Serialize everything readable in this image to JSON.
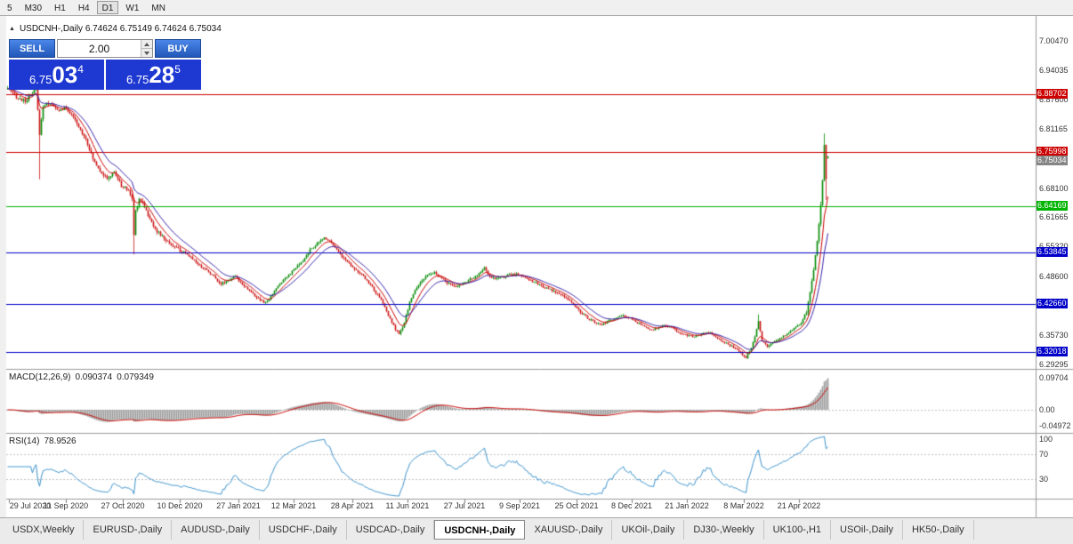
{
  "toolbar": {
    "periods": [
      {
        "label": "5",
        "active": false
      },
      {
        "label": "M30",
        "active": false
      },
      {
        "label": "H1",
        "active": false
      },
      {
        "label": "H4",
        "active": false
      },
      {
        "label": "D1",
        "active": true
      },
      {
        "label": "W1",
        "active": false
      },
      {
        "label": "MN",
        "active": false
      }
    ]
  },
  "chart": {
    "symbol_line": "USDCNH-,Daily 6.74624 6.75149 6.74624 6.75034"
  },
  "trade_panel": {
    "sell_label": "SELL",
    "buy_label": "BUY",
    "volume": "2.00",
    "bid": {
      "prefix": "6.75",
      "big": "03",
      "sup": "4"
    },
    "ask": {
      "prefix": "6.75",
      "big": "28",
      "sup": "5"
    }
  },
  "price_axis": {
    "ticks": [
      {
        "text": "7.00470",
        "value": 7.0047
      },
      {
        "text": "6.94035",
        "value": 6.94035
      },
      {
        "text": "6.87600",
        "value": 6.876
      },
      {
        "text": "6.81165",
        "value": 6.81165
      },
      {
        "text": "6.68100",
        "value": 6.681
      },
      {
        "text": "6.61665",
        "value": 6.61665
      },
      {
        "text": "6.55320",
        "value": 6.5532
      },
      {
        "text": "6.48600",
        "value": 6.486
      },
      {
        "text": "6.35730",
        "value": 6.3573
      },
      {
        "text": "6.29295",
        "value": 6.29295
      }
    ],
    "line_labels": [
      {
        "text": "6.88702",
        "value": 6.88702,
        "color": "#cc0000"
      },
      {
        "text": "6.75998",
        "value": 6.75998,
        "color": "#cc0000"
      },
      {
        "text": "6.64169",
        "value": 6.64169,
        "color": "#00b400"
      },
      {
        "text": "6.53845",
        "value": 6.53845,
        "color": "#0000c8"
      },
      {
        "text": "6.42660",
        "value": 6.4266,
        "color": "#0000c8"
      },
      {
        "text": "6.32018",
        "value": 6.32018,
        "color": "#0000c8"
      }
    ],
    "current_label": {
      "text": "6.75034",
      "value": 6.75034,
      "bg": "#858585"
    }
  },
  "macd": {
    "name": "MACD(12,26,9)",
    "value_main": "0.090374",
    "value_signal": "0.079349",
    "axis": [
      {
        "text": "0.09704",
        "value": 0.09704
      },
      {
        "text": "0.00",
        "value": 0
      },
      {
        "text": "-0.04972",
        "value": -0.04972
      }
    ]
  },
  "rsi": {
    "name": "RSI(14)",
    "value": "78.9526",
    "axis": [
      {
        "text": "100",
        "value": 100
      },
      {
        "text": "70",
        "value": 70
      },
      {
        "text": "30",
        "value": 30
      }
    ],
    "levels": [
      70,
      30
    ]
  },
  "date_axis": {
    "labels": [
      {
        "text": "29 Jul 2020",
        "day": 1
      },
      {
        "text": "11 Sep 2020",
        "day": 33
      },
      {
        "text": "27 Oct 2020",
        "day": 65
      },
      {
        "text": "10 Dec 2020",
        "day": 97
      },
      {
        "text": "27 Jan 2021",
        "day": 130
      },
      {
        "text": "12 Mar 2021",
        "day": 161
      },
      {
        "text": "28 Apr 2021",
        "day": 194
      },
      {
        "text": "11 Jun 2021",
        "day": 225
      },
      {
        "text": "27 Jul 2021",
        "day": 257
      },
      {
        "text": "9 Sep 2021",
        "day": 288
      },
      {
        "text": "25 Oct 2021",
        "day": 320
      },
      {
        "text": "8 Dec 2021",
        "day": 351
      },
      {
        "text": "21 Jan 2022",
        "day": 382
      },
      {
        "text": "8 Mar 2022",
        "day": 414
      },
      {
        "text": "21 Apr 2022",
        "day": 445
      }
    ]
  },
  "tabs": [
    {
      "label": "USDX,Weekly",
      "active": false
    },
    {
      "label": "EURUSD-,Daily",
      "active": false
    },
    {
      "label": "AUDUSD-,Daily",
      "active": false
    },
    {
      "label": "USDCHF-,Daily",
      "active": false
    },
    {
      "label": "USDCAD-,Daily",
      "active": false
    },
    {
      "label": "USDCNH-,Daily",
      "active": true
    },
    {
      "label": "XAUUSD-,Daily",
      "active": false
    },
    {
      "label": "UKOil-,Daily",
      "active": false
    },
    {
      "label": "DJ30-,Weekly",
      "active": false
    },
    {
      "label": "UK100-,H1",
      "active": false
    },
    {
      "label": "USOil-,Daily",
      "active": false
    },
    {
      "label": "HK50-,Daily",
      "active": false
    }
  ],
  "colors": {
    "up": "#008800",
    "down": "#cc1111",
    "ma_fast": "#cc0000",
    "ma_slow": "#3322aa",
    "macd_hist": "#9c9c9c",
    "macd_signal": "#cc0000",
    "rsi_line": "#3a92cc"
  },
  "chart_data": {
    "type": "candlestick",
    "symbol": "USDCNH",
    "timeframe": "Daily",
    "ohlc_current": {
      "open": 6.74624,
      "high": 6.75149,
      "low": 6.74624,
      "close": 6.75034
    },
    "current_price": 6.75034,
    "num_candles": 462,
    "price_anchors": [
      [
        0,
        6.9
      ],
      [
        3,
        6.888
      ],
      [
        6,
        6.878
      ],
      [
        10,
        6.872
      ],
      [
        14,
        6.888
      ],
      [
        16,
        6.902
      ],
      [
        18,
        6.8
      ],
      [
        20,
        6.862
      ],
      [
        24,
        6.868
      ],
      [
        28,
        6.852
      ],
      [
        33,
        6.856
      ],
      [
        36,
        6.842
      ],
      [
        40,
        6.815
      ],
      [
        44,
        6.79
      ],
      [
        48,
        6.745
      ],
      [
        52,
        6.72
      ],
      [
        56,
        6.7
      ],
      [
        60,
        6.716
      ],
      [
        64,
        6.686
      ],
      [
        68,
        6.676
      ],
      [
        70,
        6.656
      ],
      [
        71,
        6.578
      ],
      [
        72,
        6.632
      ],
      [
        74,
        6.657
      ],
      [
        76,
        6.65
      ],
      [
        80,
        6.612
      ],
      [
        84,
        6.586
      ],
      [
        88,
        6.57
      ],
      [
        92,
        6.556
      ],
      [
        96,
        6.546
      ],
      [
        100,
        6.536
      ],
      [
        104,
        6.526
      ],
      [
        108,
        6.51
      ],
      [
        112,
        6.5
      ],
      [
        116,
        6.486
      ],
      [
        120,
        6.47
      ],
      [
        124,
        6.478
      ],
      [
        128,
        6.486
      ],
      [
        132,
        6.47
      ],
      [
        136,
        6.455
      ],
      [
        140,
        6.44
      ],
      [
        144,
        6.428
      ],
      [
        147,
        6.435
      ],
      [
        150,
        6.455
      ],
      [
        154,
        6.475
      ],
      [
        158,
        6.49
      ],
      [
        162,
        6.505
      ],
      [
        166,
        6.52
      ],
      [
        170,
        6.545
      ],
      [
        174,
        6.558
      ],
      [
        178,
        6.572
      ],
      [
        181,
        6.565
      ],
      [
        184,
        6.552
      ],
      [
        188,
        6.53
      ],
      [
        192,
        6.515
      ],
      [
        196,
        6.5
      ],
      [
        200,
        6.486
      ],
      [
        204,
        6.468
      ],
      [
        208,
        6.445
      ],
      [
        211,
        6.428
      ],
      [
        214,
        6.4
      ],
      [
        216,
        6.385
      ],
      [
        218,
        6.37
      ],
      [
        220,
        6.36
      ],
      [
        222,
        6.372
      ],
      [
        224,
        6.4
      ],
      [
        226,
        6.43
      ],
      [
        229,
        6.455
      ],
      [
        232,
        6.475
      ],
      [
        236,
        6.488
      ],
      [
        240,
        6.495
      ],
      [
        244,
        6.482
      ],
      [
        248,
        6.47
      ],
      [
        252,
        6.463
      ],
      [
        256,
        6.472
      ],
      [
        260,
        6.48
      ],
      [
        264,
        6.488
      ],
      [
        268,
        6.508
      ],
      [
        270,
        6.49
      ],
      [
        274,
        6.48
      ],
      [
        278,
        6.485
      ],
      [
        282,
        6.49
      ],
      [
        286,
        6.492
      ],
      [
        290,
        6.486
      ],
      [
        294,
        6.478
      ],
      [
        298,
        6.47
      ],
      [
        302,
        6.462
      ],
      [
        306,
        6.455
      ],
      [
        310,
        6.448
      ],
      [
        314,
        6.44
      ],
      [
        318,
        6.425
      ],
      [
        322,
        6.408
      ],
      [
        326,
        6.395
      ],
      [
        330,
        6.385
      ],
      [
        334,
        6.38
      ],
      [
        338,
        6.388
      ],
      [
        342,
        6.395
      ],
      [
        346,
        6.4
      ],
      [
        350,
        6.394
      ],
      [
        354,
        6.385
      ],
      [
        358,
        6.375
      ],
      [
        362,
        6.368
      ],
      [
        366,
        6.375
      ],
      [
        370,
        6.378
      ],
      [
        374,
        6.372
      ],
      [
        378,
        6.362
      ],
      [
        382,
        6.357
      ],
      [
        386,
        6.353
      ],
      [
        390,
        6.36
      ],
      [
        394,
        6.364
      ],
      [
        398,
        6.354
      ],
      [
        402,
        6.344
      ],
      [
        406,
        6.335
      ],
      [
        410,
        6.325
      ],
      [
        413,
        6.315
      ],
      [
        415,
        6.308
      ],
      [
        418,
        6.33
      ],
      [
        420,
        6.355
      ],
      [
        422,
        6.388
      ],
      [
        424,
        6.345
      ],
      [
        427,
        6.332
      ],
      [
        430,
        6.34
      ],
      [
        434,
        6.35
      ],
      [
        438,
        6.36
      ],
      [
        442,
        6.372
      ],
      [
        446,
        6.385
      ],
      [
        449,
        6.41
      ],
      [
        451,
        6.45
      ],
      [
        453,
        6.5
      ],
      [
        455,
        6.565
      ],
      [
        457,
        6.645
      ],
      [
        458,
        6.7
      ],
      [
        459,
        6.775
      ],
      [
        460,
        6.7
      ],
      [
        461,
        6.75
      ]
    ],
    "noise_profile": [
      [
        100,
        0.0065
      ],
      [
        340,
        0.0045
      ],
      [
        449,
        0.0035
      ],
      [
        459,
        0.01
      ],
      [
        462,
        0.003
      ]
    ],
    "wick_overrides": [
      [
        18,
        "low",
        6.7
      ],
      [
        71,
        "low",
        6.535
      ],
      [
        422,
        "high",
        6.403
      ],
      [
        459,
        "high",
        6.801
      ],
      [
        460,
        "low",
        6.655
      ]
    ],
    "ma_fast_period": 8,
    "ma_slow_period": 16,
    "macd": {
      "fast": 12,
      "slow": 26,
      "signal": 9,
      "current_main": 0.090374,
      "current_signal": 0.079349
    },
    "rsi_period": 14,
    "rsi_current": 78.9526
  }
}
